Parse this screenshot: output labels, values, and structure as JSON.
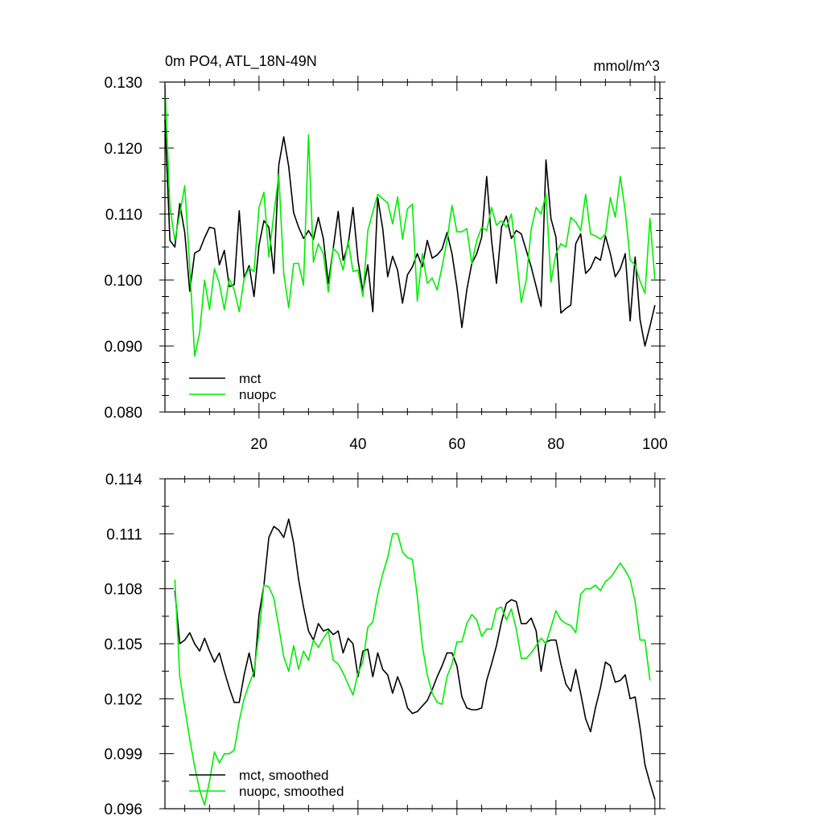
{
  "chart_data": [
    {
      "type": "line",
      "title": "0m PO4, ATL_18N-49N",
      "units": "mmol/m^3",
      "xlim": [
        1,
        101
      ],
      "ylim": [
        0.08,
        0.13
      ],
      "xticks": [
        20,
        40,
        60,
        80,
        100
      ],
      "yticks": [
        0.08,
        0.09,
        0.1,
        0.11,
        0.12,
        0.13
      ],
      "ytick_labels": [
        "0.080",
        "0.090",
        "0.100",
        "0.110",
        "0.120",
        "0.130"
      ],
      "x_start": 1,
      "legend_position": "lower-left",
      "colors": {
        "mct": "#000000",
        "nuopc": "#00ee00"
      },
      "series": [
        {
          "name": "mct",
          "values": [
            0.1243,
            0.106,
            0.105,
            0.1116,
            0.1072,
            0.0983,
            0.1041,
            0.1045,
            0.1064,
            0.108,
            0.1078,
            0.1023,
            0.1045,
            0.099,
            0.0993,
            0.1105,
            0.1003,
            0.1022,
            0.0975,
            0.1053,
            0.109,
            0.108,
            0.101,
            0.1175,
            0.1217,
            0.1172,
            0.1102,
            0.108,
            0.1063,
            0.1075,
            0.1062,
            0.1095,
            0.1063,
            0.0995,
            0.1048,
            0.1104,
            0.103,
            0.1053,
            0.111,
            0.103,
            0.0983,
            0.1023,
            0.0952,
            0.1125,
            0.1078,
            0.1005,
            0.1036,
            0.1015,
            0.0965,
            0.1008,
            0.102,
            0.104,
            0.102,
            0.106,
            0.1033,
            0.1038,
            0.1047,
            0.1072,
            0.104,
            0.099,
            0.0928,
            0.0985,
            0.1025,
            0.104,
            0.1065,
            0.1157,
            0.106,
            0.0995,
            0.108,
            0.1097,
            0.1063,
            0.1075,
            0.107,
            0.1045,
            0.102,
            0.099,
            0.096,
            0.1182,
            0.1093,
            0.1065,
            0.095,
            0.0957,
            0.0962,
            0.1055,
            0.107,
            0.101,
            0.1018,
            0.1035,
            0.103,
            0.1067,
            0.104,
            0.1005,
            0.1017,
            0.104,
            0.0938,
            0.1035,
            0.094,
            0.09,
            0.093,
            0.0962
          ]
        },
        {
          "name": "nuopc",
          "values": [
            0.1295,
            0.111,
            0.106,
            0.11,
            0.1143,
            0.102,
            0.0885,
            0.092,
            0.1,
            0.0955,
            0.1017,
            0.0995,
            0.0955,
            0.1002,
            0.0985,
            0.0952,
            0.1002,
            0.1018,
            0.1013,
            0.111,
            0.1133,
            0.1035,
            0.11,
            0.116,
            0.101,
            0.0958,
            0.1025,
            0.1025,
            0.0992,
            0.122,
            0.1027,
            0.1055,
            0.104,
            0.0982,
            0.1048,
            0.104,
            0.1015,
            0.106,
            0.1013,
            0.1015,
            0.0975,
            0.1075,
            0.1103,
            0.113,
            0.1123,
            0.1117,
            0.1085,
            0.1126,
            0.1062,
            0.1108,
            0.1115,
            0.0968,
            0.104,
            0.0995,
            0.1003,
            0.0985,
            0.102,
            0.106,
            0.1113,
            0.1073,
            0.1073,
            0.1078,
            0.1025,
            0.106,
            0.108,
            0.1075,
            0.111,
            0.1083,
            0.109,
            0.108,
            0.11,
            0.1037,
            0.0966,
            0.1,
            0.1077,
            0.111,
            0.11,
            0.113,
            0.0997,
            0.104,
            0.1055,
            0.105,
            0.1095,
            0.1088,
            0.1075,
            0.113,
            0.107,
            0.1067,
            0.1062,
            0.107,
            0.1125,
            0.1095,
            0.1157,
            0.1105,
            0.103,
            0.1023,
            0.0998,
            0.098,
            0.1093,
            0.1
          ]
        }
      ]
    },
    {
      "type": "line",
      "xlim": [
        1,
        101
      ],
      "ylim": [
        0.096,
        0.114
      ],
      "yticks": [
        0.096,
        0.099,
        0.102,
        0.105,
        0.108,
        0.111,
        0.114
      ],
      "ytick_labels": [
        "0.096",
        "0.099",
        "0.102",
        "0.105",
        "0.108",
        "0.111",
        "0.114"
      ],
      "x_start": 3,
      "legend_position": "lower-left",
      "colors": {
        "mct, smoothed": "#000000",
        "nuopc, smoothed": "#00ee00"
      },
      "series": [
        {
          "name": "mct, smoothed",
          "values": [
            0.1079,
            0.105,
            0.1052,
            0.1056,
            0.105,
            0.1046,
            0.1053,
            0.1046,
            0.104,
            0.1045,
            0.1035,
            0.1026,
            0.1018,
            0.1018,
            0.1033,
            0.1045,
            0.1032,
            0.1066,
            0.1082,
            0.1108,
            0.1114,
            0.1112,
            0.1108,
            0.1118,
            0.1105,
            0.1085,
            0.107,
            0.1057,
            0.1052,
            0.1061,
            0.1057,
            0.1058,
            0.1055,
            0.1057,
            0.1045,
            0.1053,
            0.105,
            0.1032,
            0.1046,
            0.1047,
            0.1032,
            0.1045,
            0.1036,
            0.1033,
            0.1023,
            0.1032,
            0.1025,
            0.1015,
            0.1012,
            0.1013,
            0.1016,
            0.1019,
            0.1025,
            0.1032,
            0.1038,
            0.1045,
            0.1045,
            0.1038,
            0.1021,
            0.1015,
            0.1014,
            0.1014,
            0.1015,
            0.103,
            0.1039,
            0.1049,
            0.1062,
            0.1072,
            0.1074,
            0.1073,
            0.1061,
            0.1061,
            0.1064,
            0.1057,
            0.1035,
            0.1051,
            0.1052,
            0.1052,
            0.1039,
            0.1028,
            0.1024,
            0.1036,
            0.1023,
            0.1009,
            0.1002,
            0.1015,
            0.1026,
            0.104,
            0.1038,
            0.1029,
            0.103,
            0.1033,
            0.102,
            0.1021,
            0.1004,
            0.0984,
            0.0974,
            0.0965
          ]
        },
        {
          "name": "nuopc, smoothed",
          "values": [
            0.1085,
            0.1032,
            0.1015,
            0.0998,
            0.0983,
            0.097,
            0.0962,
            0.0975,
            0.0991,
            0.0985,
            0.099,
            0.099,
            0.0992,
            0.1008,
            0.102,
            0.1028,
            0.1035,
            0.1056,
            0.1082,
            0.1081,
            0.1075,
            0.1059,
            0.1043,
            0.1035,
            0.1049,
            0.1036,
            0.1046,
            0.1041,
            0.1052,
            0.1048,
            0.1053,
            0.1057,
            0.1041,
            0.1039,
            0.1034,
            0.1028,
            0.1022,
            0.1034,
            0.104,
            0.1059,
            0.1062,
            0.1077,
            0.1088,
            0.1097,
            0.111,
            0.111,
            0.11,
            0.1097,
            0.1096,
            0.1076,
            0.1049,
            0.1033,
            0.1023,
            0.1018,
            0.1017,
            0.1032,
            0.1039,
            0.1051,
            0.1051,
            0.1061,
            0.1066,
            0.1063,
            0.1054,
            0.1058,
            0.1058,
            0.1069,
            0.107,
            0.1063,
            0.1069,
            0.1058,
            0.1042,
            0.1042,
            0.1045,
            0.1049,
            0.1053,
            0.105,
            0.1059,
            0.1068,
            0.1063,
            0.1061,
            0.106,
            0.1056,
            0.1077,
            0.108,
            0.108,
            0.1082,
            0.1079,
            0.1084,
            0.1086,
            0.109,
            0.1094,
            0.109,
            0.1085,
            0.1073,
            0.1052,
            0.1052,
            0.103
          ]
        }
      ]
    }
  ]
}
